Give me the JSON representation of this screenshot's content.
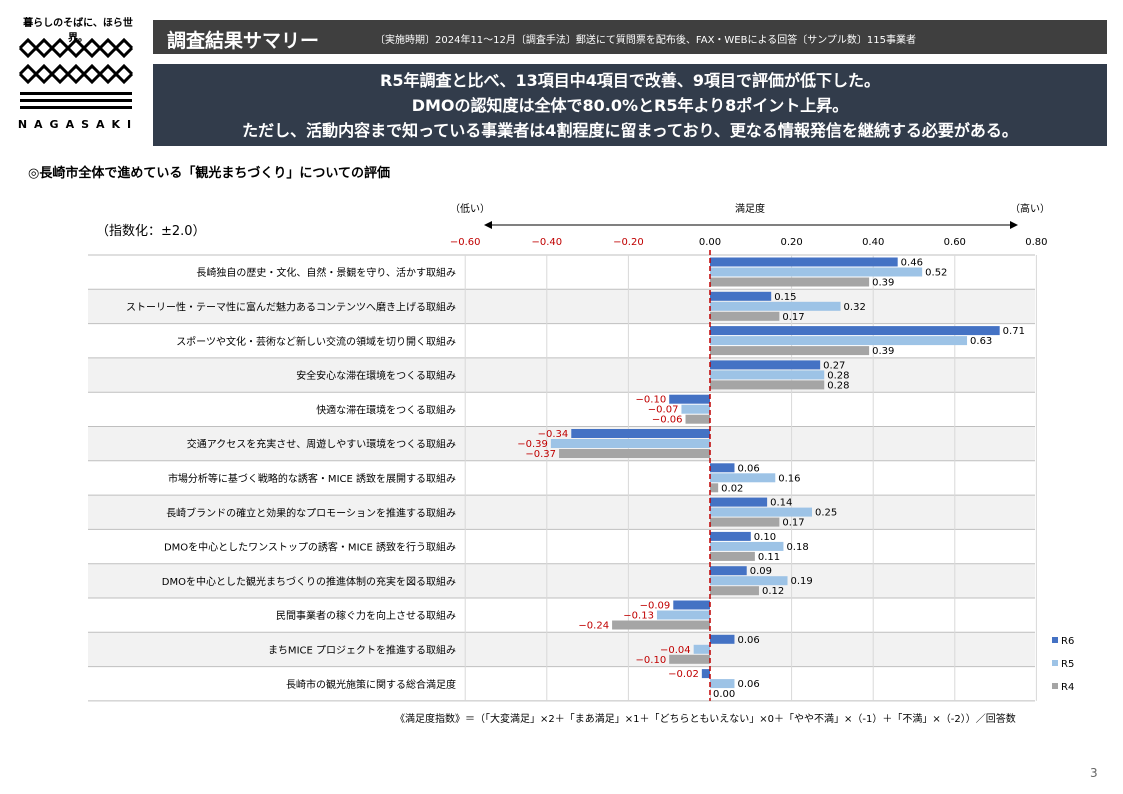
{
  "logo": {
    "tagline": "暮らしのそばに、ほら世界。",
    "name": "NAGASAKI"
  },
  "header": {
    "title": "調査結果サマリー",
    "note": "〔実施時期〕2024年11～12月〔調査手法〕郵送にて質問票を配布後、FAX・WEBによる回答〔サンプル数〕115事業者"
  },
  "summary": {
    "lines": [
      "R5年調査と比べ、13項目中4項目で改善、9項目で評価が低下した。",
      "DMOの認知度は全体で80.0%とR5年より8ポイント上昇。",
      "ただし、活動内容まで知っている事業者は4割程度に留まっており、更なる情報発信を継続する必要がある。"
    ]
  },
  "section_title": "◎長崎市全体で進めている「観光まちづくり」についての評価",
  "index_note": "（指数化：±2.0）",
  "formula": "《満足度指数》＝（「大変満足」×2＋「まあ満足」×1＋「どちらともいえない」×0＋「やや不満」×（-1）＋「不満」×（-2））／回答数",
  "page_number": "3",
  "colors": {
    "R6": "#4472c4",
    "R5": "#9dc3e6",
    "R4": "#a5a5a5",
    "negative_label": "#c00000",
    "zero_line": "#c00000"
  },
  "chart_data": {
    "type": "bar",
    "orientation": "horizontal",
    "axis_title": "満足度",
    "axis_low_label": "（低い）",
    "axis_high_label": "（高い）",
    "xlim": [
      -0.6,
      0.8
    ],
    "ticks": [
      "−0.60",
      "−0.40",
      "−0.20",
      "0.00",
      "0.20",
      "0.40",
      "0.60",
      "0.80"
    ],
    "tick_values": [
      -0.6,
      -0.4,
      -0.2,
      0,
      0.2,
      0.4,
      0.6,
      0.8
    ],
    "legend_position": "bottom-right",
    "categories": [
      "長崎独自の歴史・文化、自然・景観を守り、活かす取組み",
      "ストーリー性・テーマ性に富んだ魅力あるコンテンツへ磨き上げる取組み",
      "スポーツや文化・芸術など新しい交流の領域を切り開く取組み",
      "安全安心な滞在環境をつくる取組み",
      "快適な滞在環境をつくる取組み",
      "交通アクセスを充実させ、周遊しやすい環境をつくる取組み",
      "市場分析等に基づく戦略的な誘客・MICE 誘致を展開する取組み",
      "長崎ブランドの確立と効果的なプロモーションを推進する取組み",
      "DMOを中心としたワンストップの誘客・MICE 誘致を行う取組み",
      "DMOを中心とした観光まちづくりの推進体制の充実を図る取組み",
      "民間事業者の稼ぐ力を向上させる取組み",
      "まちMICE プロジェクトを推進する取組み",
      "長崎市の観光施策に関する総合満足度"
    ],
    "series": [
      {
        "name": "R6",
        "values": [
          0.46,
          0.15,
          0.71,
          0.27,
          -0.1,
          -0.34,
          0.06,
          0.14,
          0.1,
          0.09,
          -0.09,
          0.06,
          -0.02
        ],
        "labels": [
          "0.46",
          "0.15",
          "0.71",
          "0.27",
          "−0.10",
          "−0.34",
          "0.06",
          "0.14",
          "0.10",
          "0.09",
          "−0.09",
          "0.06",
          "−0.02"
        ]
      },
      {
        "name": "R5",
        "values": [
          0.52,
          0.32,
          0.63,
          0.28,
          -0.07,
          -0.39,
          0.16,
          0.25,
          0.18,
          0.19,
          -0.13,
          -0.04,
          0.06
        ],
        "labels": [
          "0.52",
          "0.32",
          "0.63",
          "0.28",
          "−0.07",
          "−0.39",
          "0.16",
          "0.25",
          "0.18",
          "0.19",
          "−0.13",
          "−0.04",
          "0.06"
        ]
      },
      {
        "name": "R4",
        "values": [
          0.39,
          0.17,
          0.39,
          0.28,
          -0.06,
          -0.37,
          0.02,
          0.17,
          0.11,
          0.12,
          -0.24,
          -0.1,
          0.0
        ],
        "labels": [
          "0.39",
          "0.17",
          "0.39",
          "0.28",
          "−0.06",
          "−0.37",
          "0.02",
          "0.17",
          "0.11",
          "0.12",
          "−0.24",
          "−0.10",
          "0.00"
        ]
      }
    ]
  }
}
